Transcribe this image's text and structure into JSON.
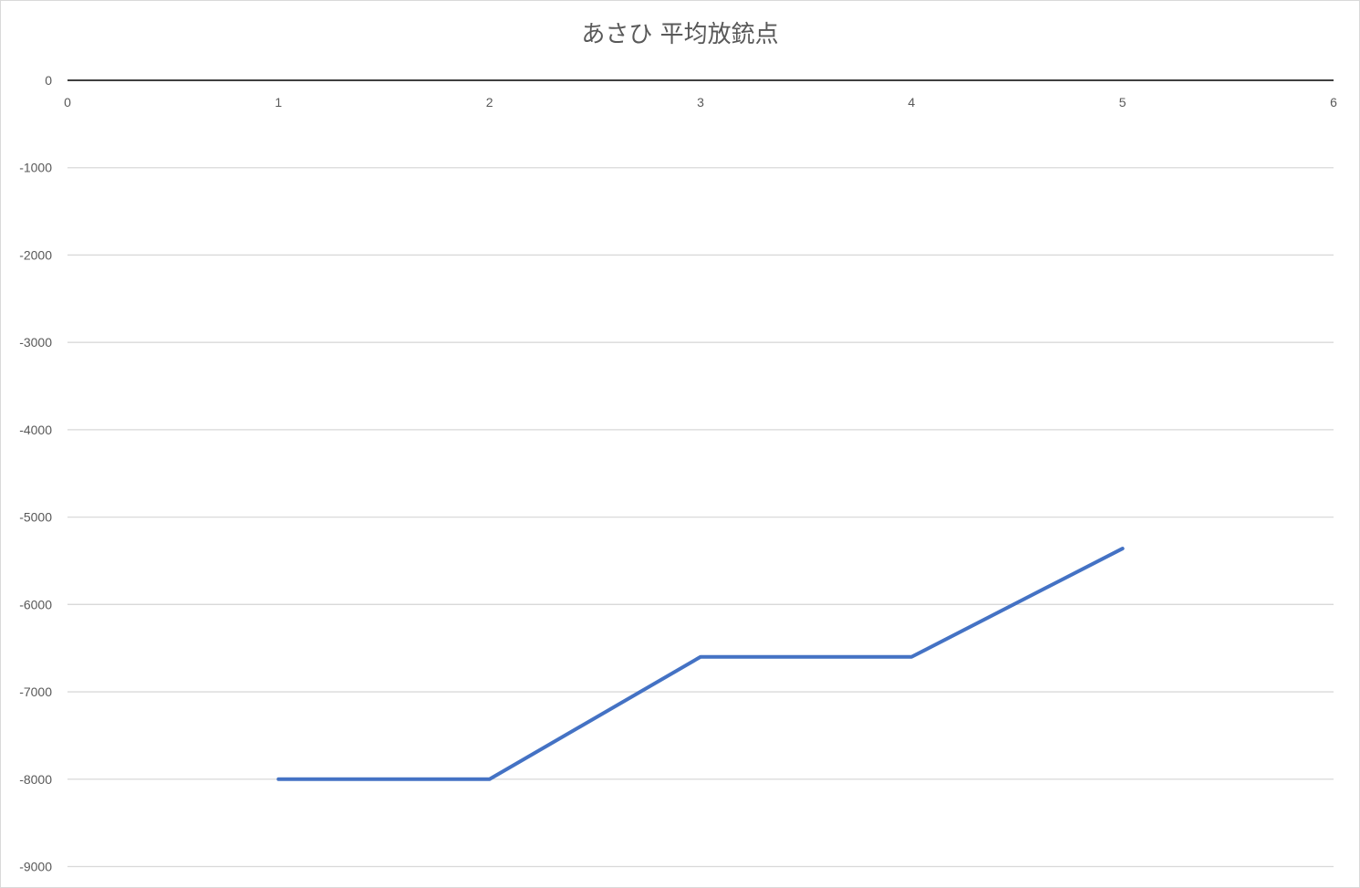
{
  "chart_data": {
    "type": "line",
    "title": "あさひ 平均放銃点",
    "xlabel": "",
    "ylabel": "",
    "xlim": [
      0,
      6
    ],
    "ylim": [
      -9000,
      0
    ],
    "x_ticks": [
      "0",
      "1",
      "2",
      "3",
      "4",
      "5",
      "6"
    ],
    "y_ticks": [
      "0",
      "-1000",
      "-2000",
      "-3000",
      "-4000",
      "-5000",
      "-6000",
      "-7000",
      "-8000",
      "-9000"
    ],
    "grid": true,
    "legend": "none",
    "series": [
      {
        "color": "#4472c4",
        "x": [
          1,
          2,
          3,
          4,
          5
        ],
        "values": [
          -8000,
          -8000,
          -6600,
          -6600,
          -5360
        ]
      }
    ]
  }
}
